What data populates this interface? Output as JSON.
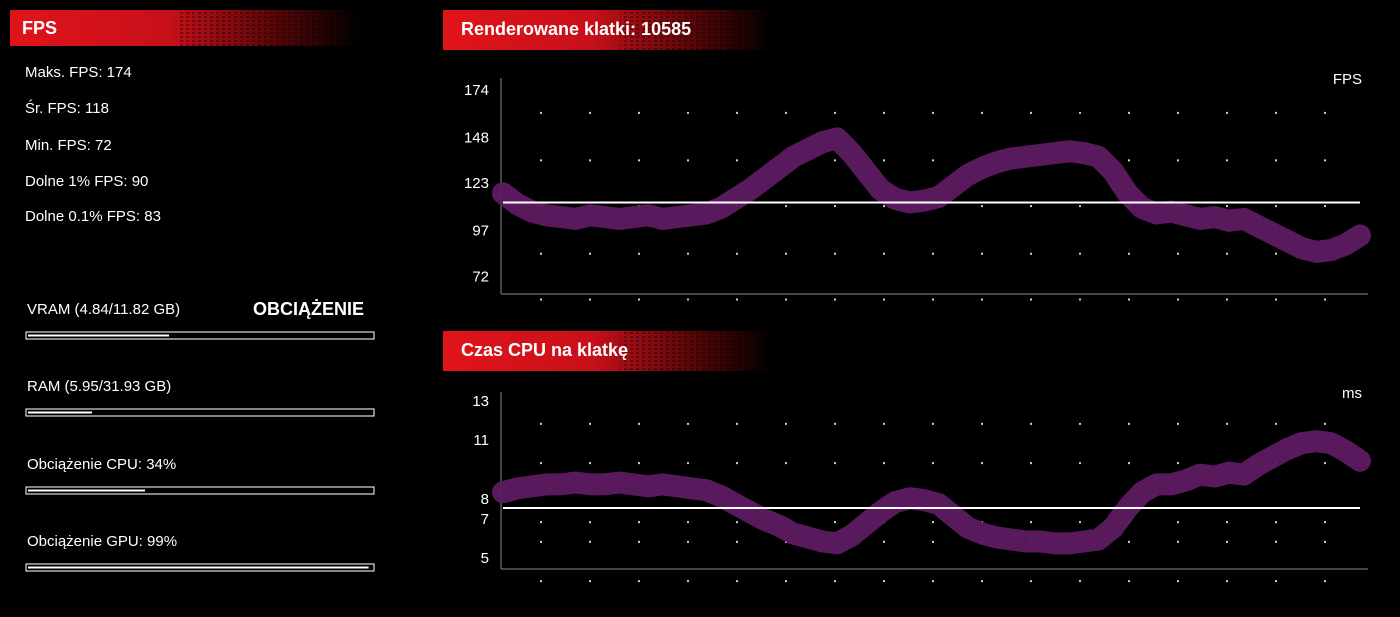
{
  "stats_panel": {
    "title": "FPS",
    "stats": [
      "Maks. FPS: 174",
      "Śr. FPS: 118",
      "Min. FPS: 72",
      "Dolne 1% FPS: 90",
      "Dolne 0.1% FPS: 83"
    ]
  },
  "usage_panel": {
    "title": "OBCIĄŻENIE",
    "bars": [
      {
        "label": "VRAM (4.84/11.82 GB)",
        "value": 41
      },
      {
        "label": "RAM (5.95/31.93 GB)",
        "value": 18.6
      },
      {
        "label": "Obciążenie CPU: 34%",
        "value": 34
      },
      {
        "label": "Obciążenie GPU: 99%",
        "value": 99
      }
    ]
  },
  "chart_data": [
    {
      "type": "line",
      "title": "Renderowane klatki: 10585",
      "unit_label": "FPS",
      "color": "#5e1b62",
      "reference_line": 113,
      "values": [
        118,
        112,
        108,
        106,
        105,
        104,
        106,
        105,
        104,
        105,
        106,
        104,
        105,
        106,
        107,
        110,
        115,
        120,
        126,
        132,
        138,
        142,
        146,
        148,
        140,
        130,
        120,
        115,
        113,
        114,
        116,
        122,
        128,
        132,
        135,
        137,
        138,
        139,
        140,
        141,
        140,
        138,
        130,
        118,
        110,
        107,
        108,
        106,
        104,
        105,
        103,
        104,
        100,
        96,
        92,
        88,
        86,
        87,
        90,
        95
      ],
      "ylim": [
        63,
        181
      ],
      "yticks": [
        72,
        97,
        123,
        148,
        174
      ],
      "grid": true
    },
    {
      "type": "line",
      "title": "Czas CPU na klatkę",
      "unit_label": "ms",
      "color": "#5e1b62",
      "reference_line": 7.6,
      "values": [
        8.4,
        8.6,
        8.7,
        8.8,
        8.8,
        8.9,
        8.8,
        8.8,
        8.9,
        8.8,
        8.7,
        8.8,
        8.7,
        8.6,
        8.5,
        8.2,
        7.8,
        7.4,
        7.0,
        6.7,
        6.3,
        6.1,
        5.9,
        5.8,
        6.2,
        6.8,
        7.4,
        7.9,
        8.1,
        8.0,
        7.8,
        7.2,
        6.6,
        6.3,
        6.1,
        6.0,
        5.9,
        5.9,
        5.8,
        5.8,
        5.9,
        6.0,
        6.6,
        7.6,
        8.4,
        8.8,
        8.8,
        9.0,
        9.3,
        9.2,
        9.4,
        9.3,
        9.8,
        10.2,
        10.6,
        10.9,
        11.0,
        10.9,
        10.5,
        10.0
      ],
      "ylim": [
        4.5,
        13.5
      ],
      "yticks": [
        5,
        7,
        8,
        11,
        13
      ],
      "grid": true
    }
  ]
}
